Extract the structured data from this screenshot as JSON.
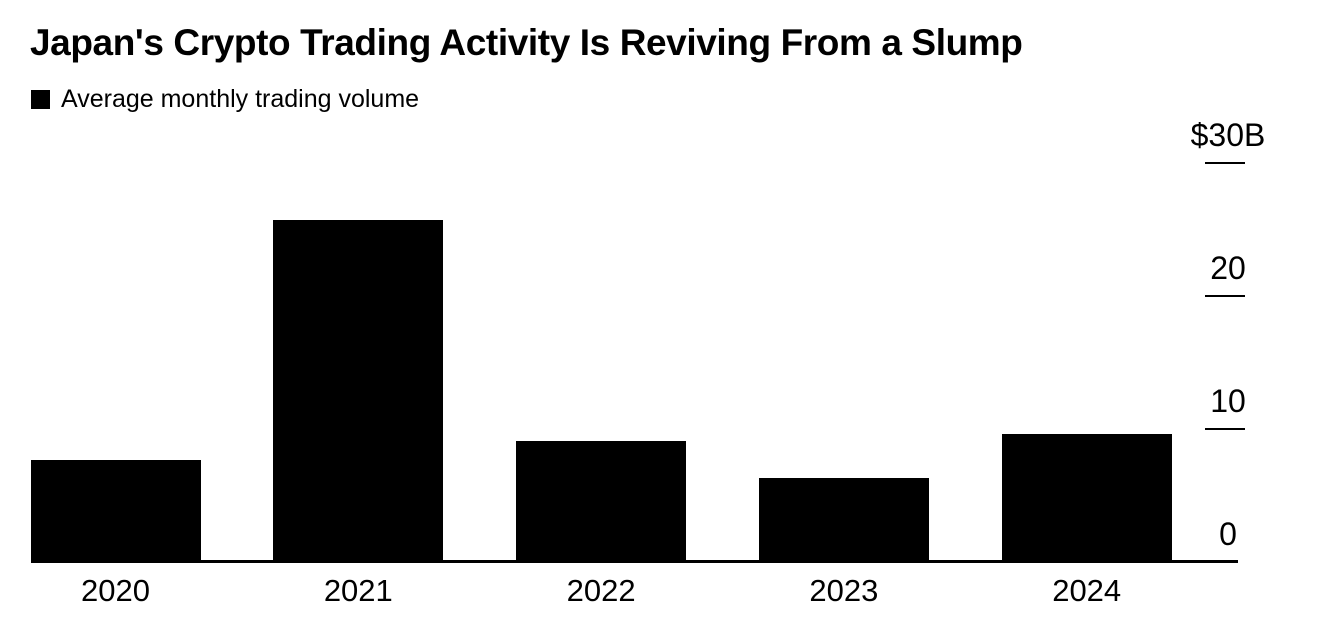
{
  "chart_data": {
    "type": "bar",
    "title": "Japan's Crypto Trading Activity Is Reviving From a Slump",
    "legend": "Average monthly trading volume",
    "categories": [
      "2020",
      "2021",
      "2022",
      "2023",
      "2024"
    ],
    "values": [
      7.7,
      25.7,
      9.1,
      6.3,
      9.6
    ],
    "unit": "$B",
    "xlabel": "",
    "ylabel": "",
    "ylim": [
      0,
      30
    ],
    "yticks": [
      {
        "value": 0,
        "label": "0"
      },
      {
        "value": 10,
        "label": "10"
      },
      {
        "value": 20,
        "label": "20"
      },
      {
        "value": 30,
        "label": "$30B"
      }
    ],
    "bar_color": "#000000",
    "background_color": "#ffffff",
    "text_color": "#000000",
    "legend_position": "top-left",
    "axis_side": "right",
    "grid": false
  }
}
